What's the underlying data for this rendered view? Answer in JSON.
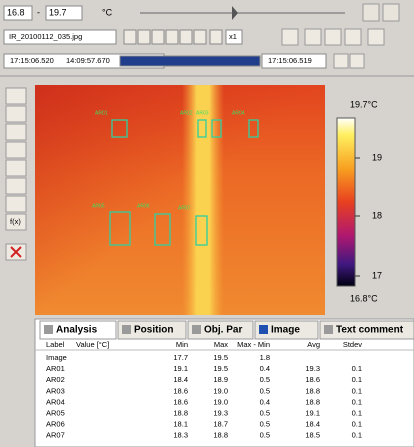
{
  "toolbar": {
    "range_min": "16.8",
    "range_separator": "-",
    "range_max": "19.7",
    "unit": "°C",
    "file": "IR_20100112_035.jpg",
    "zoom": "x1",
    "time_current": "17:15:06.520",
    "time_start": "14:09:57.670",
    "time_end": "17:15:06.519"
  },
  "left_toolbar": {
    "function": "f(x)"
  },
  "image": {
    "roi_labels": [
      "AR01",
      "AR02",
      "AR03",
      "AR04",
      "AR05",
      "AR06",
      "AR07"
    ]
  },
  "colorbar": {
    "max": "19.7°C",
    "labels": [
      "19",
      "18",
      "17"
    ],
    "min": "16.8°C"
  },
  "tabs": [
    "Analysis",
    "Position",
    "Obj. Par",
    "Image",
    "Text comment"
  ],
  "table": {
    "columns": [
      "Label",
      "Value [°C]",
      "Min",
      "Max",
      "Max - Min",
      "Avg",
      "Stdev"
    ],
    "rows": [
      [
        "Image",
        null,
        "17.7",
        "19.5",
        "1.8",
        null,
        null
      ],
      [
        "AR01",
        null,
        "19.1",
        "19.5",
        "0.4",
        "19.3",
        "0.1"
      ],
      [
        "AR02",
        null,
        "18.4",
        "18.9",
        "0.5",
        "18.6",
        "0.1"
      ],
      [
        "AR03",
        null,
        "18.6",
        "19.0",
        "0.5",
        "18.8",
        "0.1"
      ],
      [
        "AR04",
        null,
        "18.6",
        "19.0",
        "0.4",
        "18.8",
        "0.1"
      ],
      [
        "AR05",
        null,
        "18.8",
        "19.3",
        "0.5",
        "19.1",
        "0.1"
      ],
      [
        "AR06",
        null,
        "18.1",
        "18.7",
        "0.5",
        "18.4",
        "0.1"
      ],
      [
        "AR07",
        null,
        "18.3",
        "18.8",
        "0.5",
        "18.5",
        "0.1"
      ]
    ]
  }
}
